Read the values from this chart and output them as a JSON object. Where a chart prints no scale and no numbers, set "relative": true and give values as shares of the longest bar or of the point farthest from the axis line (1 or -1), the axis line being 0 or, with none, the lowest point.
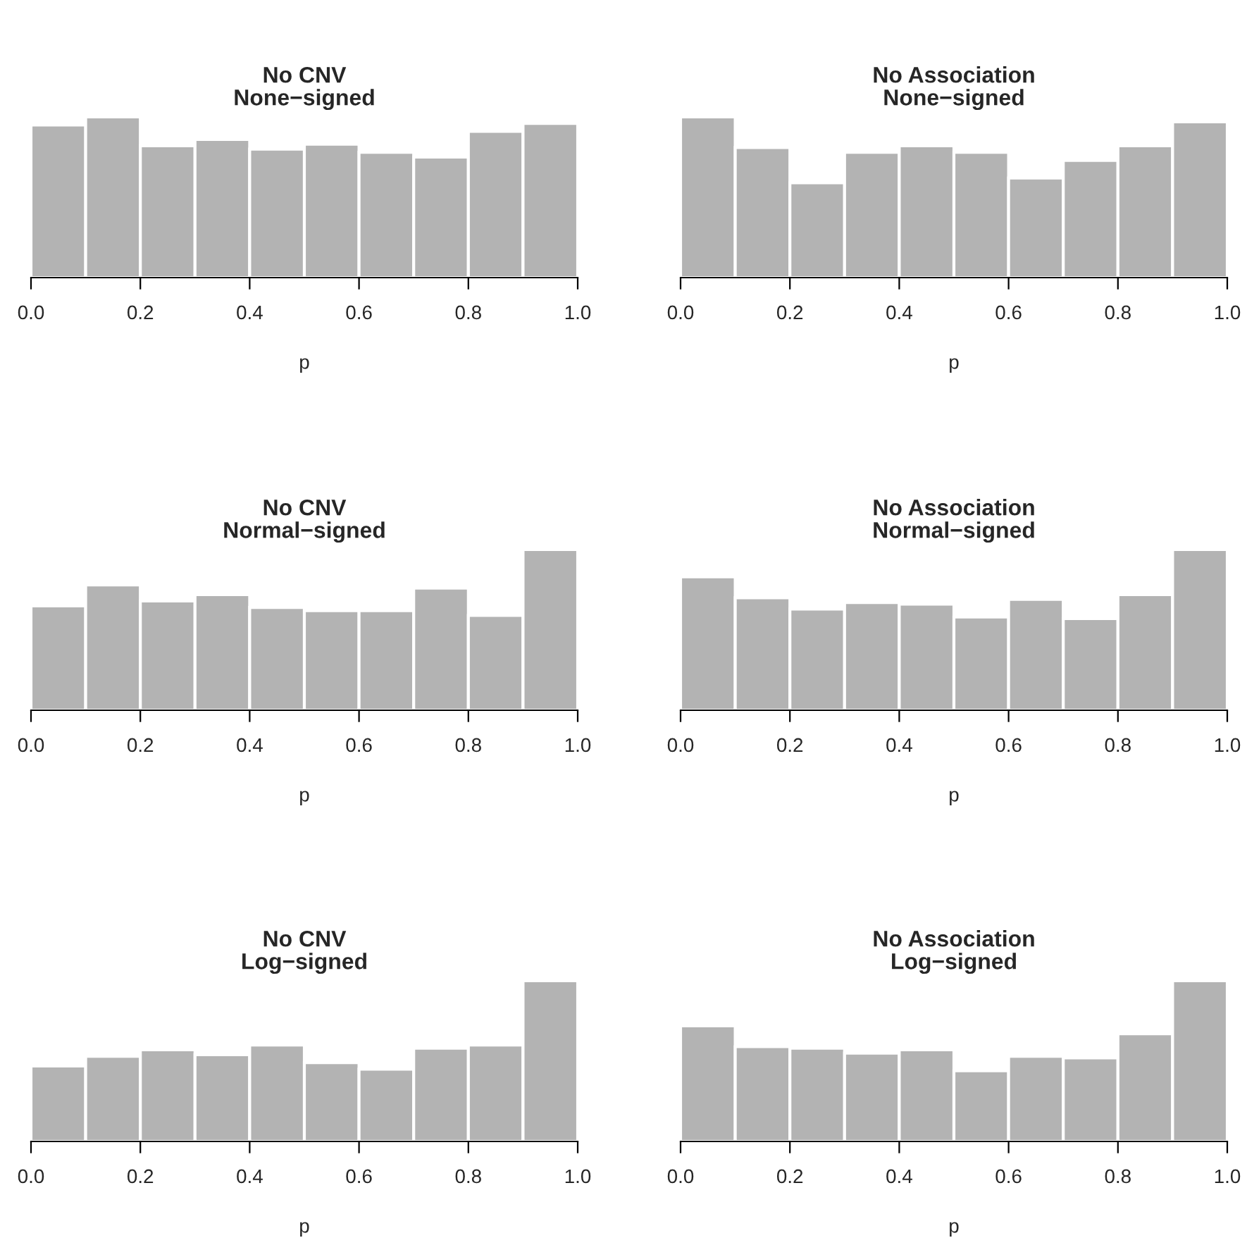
{
  "chart_data": [
    {
      "type": "bar",
      "title": "No CNV\nNone−signed",
      "xlabel": "p",
      "relative": true,
      "color": "#b3b3b3",
      "x": [
        0.05,
        0.15,
        0.25,
        0.35,
        0.45,
        0.55,
        0.65,
        0.75,
        0.85,
        0.95
      ],
      "values": [
        0.95,
        1,
        0.82,
        0.86,
        0.8,
        0.83,
        0.78,
        0.75,
        0.91,
        0.96
      ],
      "xlim": [
        0,
        1
      ],
      "xticks": [
        {
          "value": 0,
          "label": "0.0"
        },
        {
          "value": 0.2,
          "label": "0.2"
        },
        {
          "value": 0.4,
          "label": "0.4"
        },
        {
          "value": 0.6,
          "label": "0.6"
        },
        {
          "value": 0.8,
          "label": "0.8"
        },
        {
          "value": 1.0,
          "label": "1.0"
        }
      ]
    },
    {
      "type": "bar",
      "title": "No Association\nNone−signed",
      "xlabel": "p",
      "relative": true,
      "color": "#b3b3b3",
      "x": [
        0.05,
        0.15,
        0.25,
        0.35,
        0.45,
        0.55,
        0.65,
        0.75,
        0.85,
        0.95
      ],
      "values": [
        1,
        0.81,
        0.59,
        0.78,
        0.82,
        0.78,
        0.62,
        0.73,
        0.82,
        0.97
      ],
      "xlim": [
        0,
        1
      ],
      "xticks": [
        {
          "value": 0,
          "label": "0.0"
        },
        {
          "value": 0.2,
          "label": "0.2"
        },
        {
          "value": 0.4,
          "label": "0.4"
        },
        {
          "value": 0.6,
          "label": "0.6"
        },
        {
          "value": 0.8,
          "label": "0.8"
        },
        {
          "value": 1.0,
          "label": "1.0"
        }
      ]
    },
    {
      "type": "bar",
      "title": "No CNV\nNormal−signed",
      "xlabel": "p",
      "relative": true,
      "color": "#b3b3b3",
      "x": [
        0.05,
        0.15,
        0.25,
        0.35,
        0.45,
        0.55,
        0.65,
        0.75,
        0.85,
        0.95
      ],
      "values": [
        0.65,
        0.78,
        0.68,
        0.72,
        0.64,
        0.62,
        0.62,
        0.76,
        0.59,
        1
      ],
      "xlim": [
        0,
        1
      ],
      "xticks": [
        {
          "value": 0,
          "label": "0.0"
        },
        {
          "value": 0.2,
          "label": "0.2"
        },
        {
          "value": 0.4,
          "label": "0.4"
        },
        {
          "value": 0.6,
          "label": "0.6"
        },
        {
          "value": 0.8,
          "label": "0.8"
        },
        {
          "value": 1.0,
          "label": "1.0"
        }
      ]
    },
    {
      "type": "bar",
      "title": "No Association\nNormal−signed",
      "xlabel": "p",
      "relative": true,
      "color": "#b3b3b3",
      "x": [
        0.05,
        0.15,
        0.25,
        0.35,
        0.45,
        0.55,
        0.65,
        0.75,
        0.85,
        0.95
      ],
      "values": [
        0.83,
        0.7,
        0.63,
        0.67,
        0.66,
        0.58,
        0.69,
        0.57,
        0.72,
        1
      ],
      "xlim": [
        0,
        1
      ],
      "xticks": [
        {
          "value": 0,
          "label": "0.0"
        },
        {
          "value": 0.2,
          "label": "0.2"
        },
        {
          "value": 0.4,
          "label": "0.4"
        },
        {
          "value": 0.6,
          "label": "0.6"
        },
        {
          "value": 0.8,
          "label": "0.8"
        },
        {
          "value": 1.0,
          "label": "1.0"
        }
      ]
    },
    {
      "type": "bar",
      "title": "No CNV\nLog−signed",
      "xlabel": "p",
      "relative": true,
      "color": "#b3b3b3",
      "x": [
        0.05,
        0.15,
        0.25,
        0.35,
        0.45,
        0.55,
        0.65,
        0.75,
        0.85,
        0.95
      ],
      "values": [
        0.47,
        0.53,
        0.57,
        0.54,
        0.6,
        0.49,
        0.45,
        0.58,
        0.6,
        1
      ],
      "xlim": [
        0,
        1
      ],
      "xticks": [
        {
          "value": 0,
          "label": "0.0"
        },
        {
          "value": 0.2,
          "label": "0.2"
        },
        {
          "value": 0.4,
          "label": "0.4"
        },
        {
          "value": 0.6,
          "label": "0.6"
        },
        {
          "value": 0.8,
          "label": "0.8"
        },
        {
          "value": 1.0,
          "label": "1.0"
        }
      ]
    },
    {
      "type": "bar",
      "title": "No Association\nLog−signed",
      "xlabel": "p",
      "relative": true,
      "color": "#b3b3b3",
      "x": [
        0.05,
        0.15,
        0.25,
        0.35,
        0.45,
        0.55,
        0.65,
        0.75,
        0.85,
        0.95
      ],
      "values": [
        0.72,
        0.59,
        0.58,
        0.55,
        0.57,
        0.44,
        0.53,
        0.52,
        0.67,
        1
      ],
      "xlim": [
        0,
        1
      ],
      "xticks": [
        {
          "value": 0,
          "label": "0.0"
        },
        {
          "value": 0.2,
          "label": "0.2"
        },
        {
          "value": 0.4,
          "label": "0.4"
        },
        {
          "value": 0.6,
          "label": "0.6"
        },
        {
          "value": 0.8,
          "label": "0.8"
        },
        {
          "value": 1.0,
          "label": "1.0"
        }
      ]
    }
  ]
}
